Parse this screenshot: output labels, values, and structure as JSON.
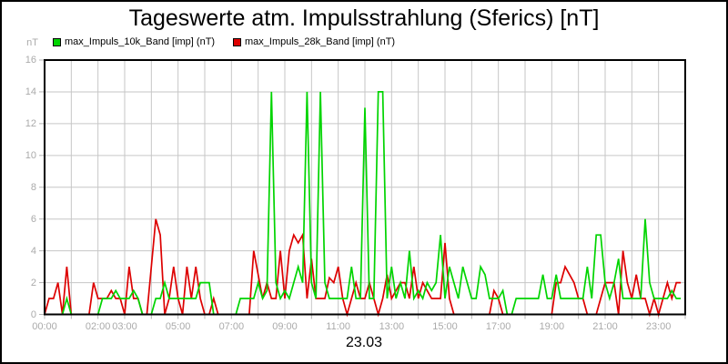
{
  "page": {
    "title": "Tageswerte atm. Impulsstrahlung (Sferics) [nT]",
    "date_caption": "23.03"
  },
  "chart_data": {
    "type": "line",
    "title": "Tageswerte atm. Impulsstrahlung (Sferics) [nT]",
    "xlabel": "23.03",
    "ylabel": "nT",
    "ylim": [
      0,
      16
    ],
    "xlim_hours": [
      0,
      24
    ],
    "y_ticks": [
      0,
      2,
      4,
      6,
      8,
      10,
      12,
      14,
      16
    ],
    "x_gridline_every_hours": 1,
    "x_tick_every_hours": 1,
    "x_tick_labels": [
      {
        "hour": 0,
        "label": "00:00"
      },
      {
        "hour": 2,
        "label": "02:00"
      },
      {
        "hour": 3,
        "label": "03:00"
      },
      {
        "hour": 5,
        "label": "05:00"
      },
      {
        "hour": 7,
        "label": "07:00"
      },
      {
        "hour": 9,
        "label": "09:00"
      },
      {
        "hour": 11,
        "label": "11:00"
      },
      {
        "hour": 13,
        "label": "13:00"
      },
      {
        "hour": 15,
        "label": "15:00"
      },
      {
        "hour": 17,
        "label": "17:00"
      },
      {
        "hour": 19,
        "label": "19:00"
      },
      {
        "hour": 21,
        "label": "21:00"
      },
      {
        "hour": 23,
        "label": "23:00"
      }
    ],
    "legend_position": "top-left",
    "grid": true,
    "grid_color": "#c6c6c6",
    "axis_color": "#000000",
    "tick_color": "#b4b4b4",
    "tick_label_color": "#aaaaaa",
    "series": [
      {
        "name": "max_Impuls_10k_Band [imp] (nT)",
        "color": "#00d400",
        "start_hour": 0,
        "step_minutes": 10,
        "values": [
          0,
          0,
          0,
          0,
          0,
          1,
          0,
          0,
          0,
          0,
          0,
          0,
          0,
          1,
          1,
          1,
          1.5,
          1,
          1,
          1,
          1.5,
          1,
          0,
          0,
          0,
          1,
          1,
          2,
          1,
          1,
          1,
          1,
          1,
          1,
          1,
          2,
          2,
          2,
          0,
          0,
          0,
          0,
          0,
          0,
          1,
          1,
          1,
          1,
          2,
          1,
          1.5,
          14,
          2,
          1,
          1.5,
          1,
          2,
          3,
          2,
          14,
          2,
          1,
          14,
          2,
          1,
          1,
          1,
          1,
          1,
          3,
          1,
          1,
          13,
          1,
          1,
          14,
          14,
          1,
          3,
          1,
          2,
          1,
          4,
          1,
          1.5,
          1,
          2,
          1.5,
          2,
          5,
          1,
          3,
          2,
          1,
          3,
          2,
          1,
          1,
          3,
          2.5,
          1,
          1,
          1,
          1.5,
          0,
          0,
          1,
          1,
          1,
          1,
          1,
          1,
          2.5,
          1,
          1,
          2.5,
          1,
          1,
          1,
          1,
          1,
          1,
          3,
          1,
          5,
          5,
          2,
          1,
          2,
          3.5,
          1,
          1,
          1,
          1,
          1,
          6,
          2,
          1,
          1,
          1,
          1,
          1.5,
          1,
          1
        ]
      },
      {
        "name": "max_Impuls_28k_Band [imp] (nT)",
        "color": "#dd0000",
        "start_hour": 0,
        "step_minutes": 10,
        "values": [
          0,
          1,
          1,
          2,
          0,
          3,
          0,
          0,
          0,
          0,
          0,
          2,
          1,
          1,
          1,
          1.5,
          1,
          1,
          0,
          3,
          1,
          1,
          0,
          0,
          3,
          6,
          5,
          0,
          1,
          3,
          1,
          0,
          3,
          1,
          3,
          1,
          0,
          0,
          1,
          0,
          0,
          0,
          0,
          0,
          0,
          0,
          0,
          4,
          2.5,
          1,
          2,
          1,
          1,
          4,
          1,
          4,
          5,
          4.5,
          5,
          1,
          3.5,
          1,
          1,
          1,
          2.3,
          2,
          3,
          1,
          0,
          1,
          2,
          1,
          1,
          2,
          1,
          0,
          1,
          2.5,
          1,
          1.5,
          2,
          2,
          1,
          3,
          1,
          2,
          1.5,
          1,
          1,
          1,
          4.5,
          1,
          0,
          0,
          0,
          0,
          0,
          0,
          0,
          0,
          0,
          1.5,
          1,
          0,
          0,
          0,
          0,
          0,
          0,
          0,
          0,
          0,
          0,
          0,
          0,
          2,
          2,
          3,
          2.5,
          2,
          1,
          1,
          0,
          0,
          0,
          1,
          2,
          2,
          2,
          0,
          4,
          2,
          1,
          2.5,
          1,
          1,
          0,
          1,
          0,
          1,
          2,
          1,
          2,
          2
        ]
      }
    ]
  }
}
